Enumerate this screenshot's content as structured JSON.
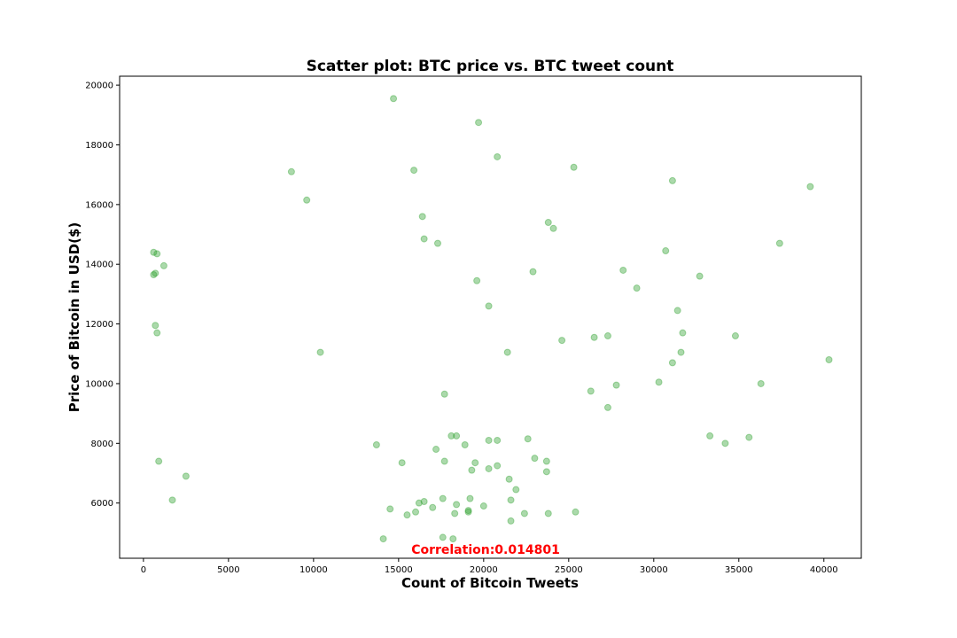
{
  "chart_data": {
    "type": "scatter",
    "title": "Scatter plot: BTC price vs. BTC tweet count",
    "xlabel": "Count of Bitcoin Tweets",
    "ylabel": "Price of Bitcoin in USD($)",
    "xlim": [
      -1400,
      42200
    ],
    "ylim": [
      4150,
      20300
    ],
    "xticks": [
      0,
      5000,
      10000,
      15000,
      20000,
      25000,
      30000,
      35000,
      40000
    ],
    "yticks": [
      6000,
      8000,
      10000,
      12000,
      14000,
      16000,
      18000,
      20000
    ],
    "grid": false,
    "point_color": "#2ca02c",
    "point_opacity": 0.4,
    "annotation": {
      "text": "Correlation:0.014801",
      "color": "#ff0000"
    },
    "series": [
      {
        "x": [
          14700,
          19700,
          20800,
          25300,
          31100,
          8700,
          15900,
          9600,
          39200,
          16400,
          16500,
          17300,
          23800,
          24100,
          37400,
          30700,
          600,
          800,
          600,
          700,
          1200,
          28200,
          22900,
          32700,
          19600,
          29000,
          20300,
          31400,
          700,
          800,
          26500,
          27300,
          34800,
          31700,
          24600,
          10400,
          21400,
          31600,
          31100,
          40300,
          17700,
          26300,
          27800,
          30300,
          36300,
          27300,
          900,
          2500,
          1700,
          13700,
          15200,
          17200,
          17700,
          18100,
          18400,
          18900,
          20300,
          20800,
          22600,
          23000,
          23700,
          19500,
          19300,
          20300,
          20800,
          21500,
          23700,
          21900,
          19200,
          16500,
          16200,
          17000,
          17600,
          18400,
          14500,
          16000,
          15500,
          18300,
          19100,
          19100,
          20000,
          21600,
          22400,
          23800,
          25400,
          21600,
          14100,
          17600,
          18200
        ],
        "y": [
          19550,
          18750,
          17600,
          17250,
          16800,
          17100,
          17150,
          16150,
          16600,
          15600,
          14850,
          14700,
          15400,
          15200,
          14700,
          14450,
          14400,
          14350,
          13650,
          13700,
          13950,
          13800,
          13750,
          13600,
          13450,
          13200,
          12600,
          12450,
          11950,
          11700,
          11550,
          11600,
          11600,
          11700,
          11450,
          11050,
          11050,
          11050,
          10700,
          10800,
          9650,
          9750,
          9950,
          10050,
          10000,
          9200,
          7400,
          6900,
          6100,
          7950,
          7350,
          7800,
          7400,
          8250,
          8250,
          7950,
          8100,
          8100,
          8150,
          7500,
          7400,
          7350,
          7100,
          7150,
          7250,
          6800,
          7050,
          6450,
          6150,
          6050,
          6000,
          5850,
          6150,
          5950,
          5800,
          5700,
          5600,
          5650,
          5700,
          5750,
          5900,
          6100,
          5650,
          5650,
          5700,
          5400,
          4800,
          4850,
          4800
        ]
      },
      {
        "x": [
          33300,
          34200,
          35600
        ],
        "y": [
          8250,
          8000,
          8200
        ]
      }
    ]
  }
}
